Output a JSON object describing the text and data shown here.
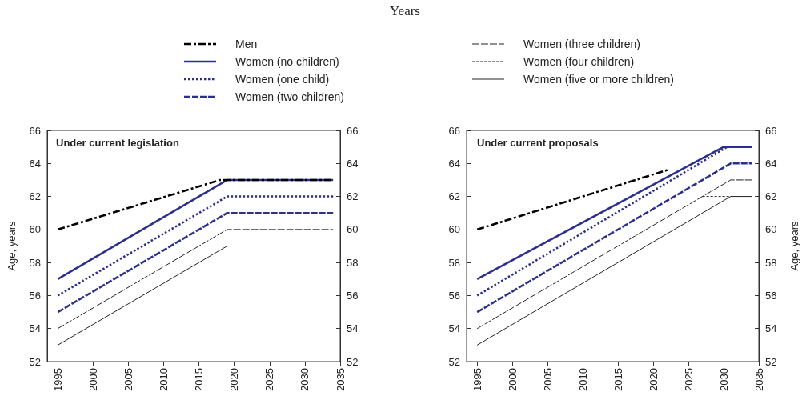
{
  "chart_data": [
    {
      "type": "line",
      "title": "Under current legislation",
      "xlabel": "Years",
      "ylabel": "Age, years",
      "xlim": [
        1993.5,
        2035
      ],
      "xticks": [
        1995,
        2000,
        2005,
        2010,
        2015,
        2020,
        2025,
        2030,
        2035
      ],
      "ylim": [
        52,
        66
      ],
      "yticks": [
        52,
        54,
        56,
        58,
        60,
        62,
        64,
        66
      ],
      "y2lim": [
        52,
        66
      ],
      "y2ticks": [
        52,
        54,
        56,
        58,
        60,
        62,
        64,
        66
      ],
      "grid": false,
      "marker": "none",
      "series": [
        {
          "color": "#000000",
          "line_style": "dashdot",
          "x": [
            1995,
            2018,
            2034
          ],
          "values": [
            60,
            63,
            63
          ]
        },
        {
          "color": "#2b2f8f",
          "line_style": "solid",
          "x": [
            1995,
            2019,
            2034
          ],
          "values": [
            57,
            63,
            63
          ]
        },
        {
          "color": "#2b2f8f",
          "line_style": "dotted",
          "x": [
            1995,
            2019,
            2034
          ],
          "values": [
            56,
            62,
            62
          ]
        },
        {
          "color": "#2b2f8f",
          "line_style": "dashed",
          "x": [
            1995,
            2019,
            2034
          ],
          "values": [
            55,
            61,
            61
          ]
        },
        {
          "color": "#222222",
          "line_style": "dashed",
          "x": [
            1995,
            2019,
            2034
          ],
          "values": [
            54,
            60,
            60
          ]
        },
        {
          "color": "#222222",
          "line_style": "solid",
          "x": [
            1995,
            2019,
            2034
          ],
          "values": [
            53,
            59,
            59
          ]
        }
      ]
    },
    {
      "type": "line",
      "title": "Under current proposals",
      "y2label": "Age, years",
      "xlim": [
        1993.5,
        2035
      ],
      "xticks": [
        1995,
        2000,
        2005,
        2010,
        2015,
        2020,
        2025,
        2030,
        2035
      ],
      "ylim": [
        52,
        66
      ],
      "yticks": [
        52,
        54,
        56,
        58,
        60,
        62,
        64,
        66
      ],
      "y2lim": [
        52,
        66
      ],
      "y2ticks": [
        52,
        54,
        56,
        58,
        60,
        62,
        64,
        66
      ],
      "grid": false,
      "legend": "top",
      "marker": "none",
      "series": [
        {
          "name": "Men",
          "color": "#000000",
          "line_style": "dashdot",
          "x": [
            1995,
            2022
          ],
          "values": [
            60,
            63.6
          ]
        },
        {
          "name": "Women (no children)",
          "color": "#2b2f8f",
          "line_style": "solid",
          "x": [
            1995,
            2030,
            2034
          ],
          "values": [
            57,
            65,
            65
          ]
        },
        {
          "name": "Women (one child)",
          "color": "#2b2f8f",
          "line_style": "dotted",
          "x": [
            1995,
            2030.5,
            2034
          ],
          "values": [
            56,
            65,
            65
          ]
        },
        {
          "name": "Women (two children)",
          "color": "#2b2f8f",
          "line_style": "dashed",
          "x": [
            1995,
            2031,
            2034
          ],
          "values": [
            55,
            64,
            64
          ]
        },
        {
          "name": "Women (three children)",
          "color": "#222222",
          "line_style": "dashed",
          "x": [
            1995,
            2031,
            2034
          ],
          "values": [
            54,
            63,
            63
          ]
        },
        {
          "name": "Women (four children)",
          "color": "#222222",
          "line_style": "dashed",
          "x": [
            2027,
            2031
          ],
          "values": [
            62,
            62
          ]
        },
        {
          "name": "Women (five or more children)",
          "color": "#222222",
          "line_style": "solid",
          "x": [
            1995,
            2031,
            2034
          ],
          "values": [
            53,
            62,
            62
          ]
        }
      ]
    }
  ]
}
